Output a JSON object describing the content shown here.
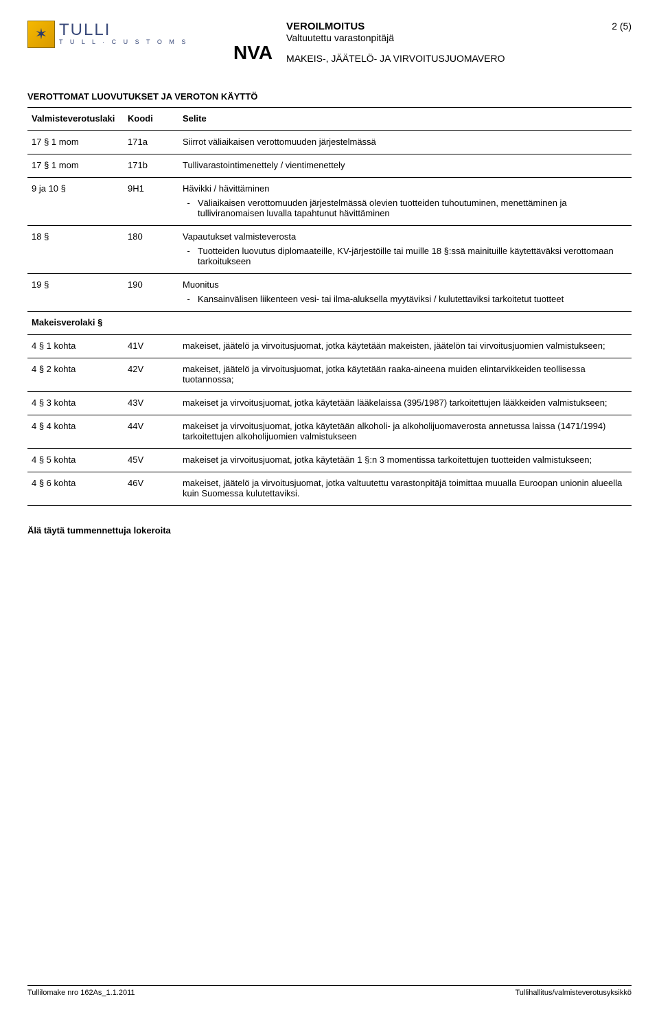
{
  "header": {
    "logo_main": "TULLI",
    "logo_sub": "T U L L · C U S T O M S",
    "nva": "NVA",
    "title1": "VEROILMOITUS",
    "title2": "Valtuutettu varastonpitäjä",
    "title3": "MAKEIS-, JÄÄTELÖ- JA VIRVOITUSJUOMAVERO",
    "page_num": "2 (5)"
  },
  "section_title": "VEROTTOMAT LUOVUTUKSET JA VEROTON KÄYTTÖ",
  "table": {
    "headers": {
      "col_a": "Valmisteverotuslaki",
      "col_b": "Koodi",
      "col_c": "Selite"
    },
    "rows": [
      {
        "a": "17 § 1 mom",
        "b": "171a",
        "c": "Siirrot väliaikaisen verottomuuden järjestelmässä"
      },
      {
        "a": "17 § 1 mom",
        "b": "171b",
        "c": "Tullivarastointimenettely / vientimenettely"
      },
      {
        "a": "9 ja 10 §",
        "b": "9H1",
        "c": "Hävikki / hävittäminen",
        "bullets": [
          "Väliaikaisen verottomuuden järjestelmässä olevien tuotteiden tuhoutuminen, menettäminen ja tulliviranomaisen luvalla tapahtunut hävittäminen"
        ]
      },
      {
        "a": "18 §",
        "b": "180",
        "c": "Vapautukset valmisteverosta",
        "bullets": [
          "Tuotteiden luovutus diplomaateille, KV-järjestöille tai muille 18 §:ssä mainituille käytettäväksi verottomaan tarkoitukseen"
        ]
      },
      {
        "a": "19 §",
        "b": "190",
        "c": "Muonitus",
        "bullets": [
          "Kansainvälisen liikenteen vesi- tai ilma-aluksella myytäviksi / kulutettaviksi tarkoitetut tuotteet"
        ]
      }
    ],
    "subhead": "Makeisverolaki §",
    "rows2": [
      {
        "a": "4 § 1 kohta",
        "b": "41V",
        "c": "makeiset, jäätelö ja virvoitusjuomat, jotka käytetään makeisten, jäätelön tai virvoitusjuomien valmistukseen;"
      },
      {
        "a": "4 § 2 kohta",
        "b": "42V",
        "c": "makeiset, jäätelö ja virvoitusjuomat, jotka käytetään raaka-aineena muiden elintarvikkeiden teollisessa tuotannossa;"
      },
      {
        "a": "4 § 3 kohta",
        "b": "43V",
        "c": "makeiset ja virvoitusjuomat, jotka käytetään lääkelaissa (395/1987) tarkoitettujen lääkkeiden valmistukseen;"
      },
      {
        "a": "4 § 4 kohta",
        "b": "44V",
        "c": "makeiset ja virvoitusjuomat, jotka käytetään alkoholi- ja alkoholijuomaverosta annetussa laissa (1471/1994) tarkoitettujen alkoholijuomien valmistukseen"
      },
      {
        "a": "4 § 5 kohta",
        "b": "45V",
        "c": "makeiset ja virvoitusjuomat, jotka käytetään 1 §:n 3 momentissa tarkoitettujen tuotteiden valmistukseen;"
      },
      {
        "a": "4 § 6 kohta",
        "b": "46V",
        "c": "makeiset, jäätelö ja virvoitusjuomat, jotka valtuutettu varastonpitäjä toimittaa muualla Euroopan unionin alueella kuin Suomessa kulutettaviksi."
      }
    ]
  },
  "footer_note": "Älä täytä tummennettuja lokeroita",
  "footer": {
    "left": "Tullilomake nro 162As_1.1.2011",
    "right": "Tullihallitus/valmisteverotusyksikkö"
  }
}
